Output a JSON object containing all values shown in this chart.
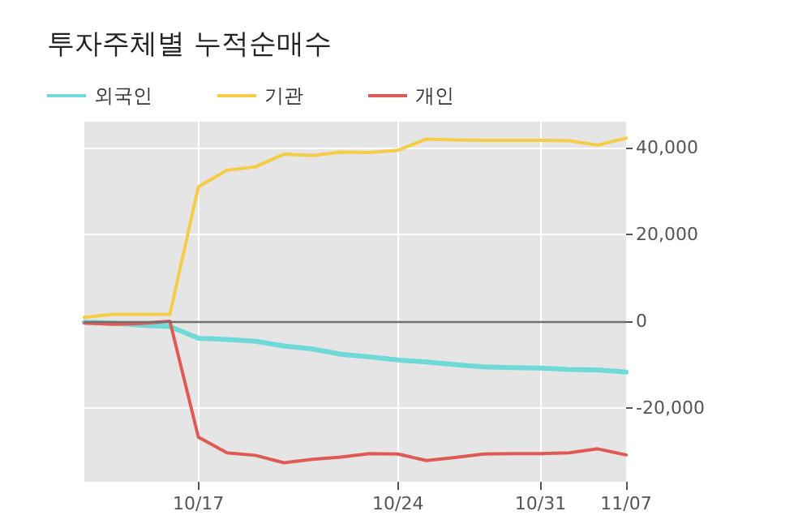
{
  "chart_data": {
    "type": "line",
    "title": "투자주체별 누적순매수",
    "categories": [
      null,
      null,
      null,
      null,
      "10/17",
      null,
      null,
      null,
      null,
      null,
      null,
      "10/24",
      null,
      null,
      null,
      null,
      "10/31",
      null,
      null,
      "11/07"
    ],
    "series": [
      {
        "name": "외국인",
        "color": "#6ed9d6",
        "values": [
          -200,
          -400,
          -900,
          -1200,
          -3900,
          -4200,
          -4600,
          -5700,
          -6400,
          -7600,
          -8200,
          -8900,
          -9400,
          -10000,
          -10500,
          -10700,
          -10800,
          -11100,
          -11200,
          -11700
        ]
      },
      {
        "name": "기관",
        "color": "#f5cc45",
        "values": [
          900,
          1600,
          1600,
          1600,
          31000,
          34800,
          35600,
          38500,
          38200,
          39000,
          38900,
          39400,
          42000,
          41800,
          41700,
          41700,
          41700,
          41600,
          40600,
          42200
        ]
      },
      {
        "name": "개인",
        "color": "#e05a55",
        "values": [
          -400,
          -700,
          -500,
          0,
          -26700,
          -30300,
          -30900,
          -32600,
          -31800,
          -31300,
          -30500,
          -30600,
          -32100,
          -31400,
          -30600,
          -30500,
          -30500,
          -30300,
          -29400,
          -30800
        ]
      }
    ],
    "ylim": [
      -37000,
      46000
    ],
    "yticks": [
      {
        "value": -20000,
        "label": "-20,000"
      },
      {
        "value": 0,
        "label": "0"
      },
      {
        "value": 20000,
        "label": "20,000"
      },
      {
        "value": 40000,
        "label": "40,000"
      }
    ],
    "ref_lines": [
      {
        "axis": "y",
        "value": 0,
        "color": "#707070"
      }
    ],
    "grid": true,
    "legend": "top left",
    "marker": "none",
    "line_style": "solid"
  }
}
